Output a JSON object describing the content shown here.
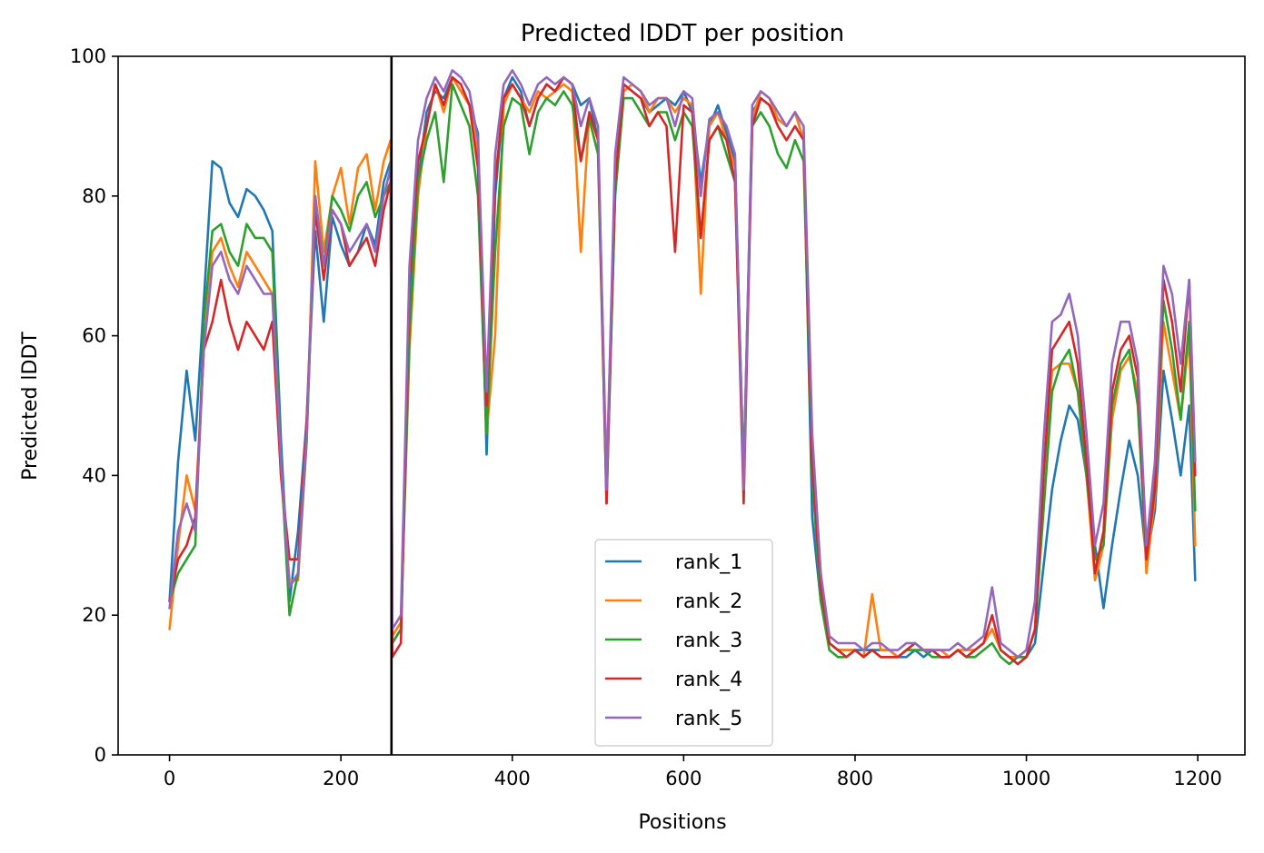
{
  "chart_data": {
    "type": "line",
    "title": "Predicted lDDT per position",
    "xlabel": "Positions",
    "ylabel": "Predicted lDDT",
    "xlim": [
      -60,
      1255
    ],
    "ylim": [
      0,
      100
    ],
    "xticks": [
      "0",
      "200",
      "400",
      "600",
      "800",
      "1000",
      "1200"
    ],
    "yticks": [
      "0",
      "20",
      "40",
      "60",
      "80",
      "100"
    ],
    "grid": false,
    "legend_position": "lower center",
    "vline": {
      "x": 259,
      "color": "#000000"
    },
    "x": [
      0,
      10,
      20,
      30,
      40,
      50,
      60,
      70,
      80,
      90,
      100,
      110,
      120,
      130,
      140,
      150,
      160,
      170,
      180,
      190,
      200,
      210,
      220,
      230,
      240,
      250,
      258,
      260,
      270,
      280,
      290,
      300,
      310,
      320,
      330,
      340,
      350,
      360,
      370,
      380,
      390,
      400,
      410,
      420,
      430,
      440,
      450,
      460,
      470,
      480,
      490,
      500,
      510,
      520,
      530,
      540,
      550,
      560,
      570,
      580,
      590,
      600,
      610,
      620,
      630,
      640,
      650,
      660,
      670,
      680,
      690,
      700,
      710,
      720,
      730,
      740,
      750,
      760,
      770,
      780,
      790,
      800,
      810,
      820,
      830,
      840,
      850,
      860,
      870,
      880,
      890,
      900,
      910,
      920,
      930,
      940,
      950,
      960,
      970,
      980,
      990,
      1000,
      1010,
      1020,
      1030,
      1040,
      1050,
      1060,
      1070,
      1080,
      1090,
      1100,
      1110,
      1120,
      1130,
      1140,
      1150,
      1160,
      1170,
      1180,
      1190,
      1197
    ],
    "series": [
      {
        "name": "rank_1",
        "color": "#1f77b4",
        "values": [
          22,
          42,
          55,
          45,
          65,
          85,
          84,
          79,
          77,
          81,
          80,
          78,
          75,
          45,
          22,
          32,
          48,
          75,
          62,
          77,
          73,
          70,
          72,
          76,
          73,
          82,
          85,
          16,
          18,
          65,
          82,
          92,
          95,
          94,
          97,
          95,
          93,
          89,
          43,
          80,
          94,
          97,
          95,
          90,
          94,
          96,
          95,
          97,
          96,
          93,
          94,
          88,
          37,
          80,
          96,
          95,
          94,
          92,
          93,
          94,
          93,
          95,
          92,
          82,
          90,
          93,
          89,
          85,
          40,
          92,
          94,
          93,
          91,
          90,
          92,
          88,
          34,
          22,
          16,
          15,
          15,
          15,
          15,
          15,
          15,
          15,
          14,
          14,
          15,
          14,
          15,
          14,
          14,
          15,
          14,
          15,
          16,
          18,
          15,
          14,
          13,
          14,
          16,
          27,
          38,
          45,
          50,
          48,
          40,
          30,
          21,
          30,
          38,
          45,
          40,
          28,
          35,
          55,
          48,
          40,
          50,
          25
        ]
      },
      {
        "name": "rank_2",
        "color": "#ff7f0e",
        "values": [
          18,
          30,
          40,
          35,
          58,
          72,
          74,
          70,
          67,
          72,
          70,
          68,
          66,
          40,
          25,
          25,
          45,
          85,
          72,
          80,
          84,
          76,
          84,
          86,
          78,
          85,
          88,
          17,
          19,
          58,
          80,
          90,
          96,
          92,
          97,
          95,
          93,
          86,
          46,
          60,
          93,
          96,
          94,
          92,
          95,
          94,
          95,
          96,
          95,
          72,
          92,
          88,
          40,
          82,
          95,
          96,
          95,
          92,
          94,
          94,
          92,
          94,
          93,
          66,
          90,
          92,
          88,
          84,
          40,
          91,
          95,
          94,
          91,
          90,
          92,
          88,
          44,
          26,
          16,
          15,
          15,
          15,
          14,
          23,
          15,
          15,
          14,
          15,
          16,
          15,
          15,
          15,
          14,
          15,
          15,
          15,
          16,
          18,
          15,
          14,
          14,
          14,
          18,
          40,
          55,
          56,
          56,
          52,
          40,
          25,
          30,
          48,
          55,
          57,
          52,
          26,
          37,
          62,
          55,
          48,
          60,
          30
        ]
      },
      {
        "name": "rank_3",
        "color": "#2ca02c",
        "values": [
          22,
          26,
          28,
          30,
          62,
          75,
          76,
          72,
          70,
          76,
          74,
          74,
          72,
          42,
          20,
          26,
          45,
          80,
          70,
          80,
          78,
          75,
          80,
          82,
          77,
          80,
          82,
          16,
          18,
          60,
          82,
          88,
          92,
          82,
          96,
          93,
          90,
          80,
          46,
          72,
          90,
          94,
          93,
          86,
          92,
          94,
          93,
          95,
          93,
          85,
          91,
          86,
          36,
          80,
          94,
          94,
          92,
          90,
          92,
          92,
          88,
          92,
          90,
          74,
          88,
          90,
          86,
          82,
          40,
          90,
          92,
          90,
          86,
          84,
          88,
          85,
          40,
          22,
          15,
          14,
          14,
          15,
          14,
          15,
          14,
          14,
          14,
          15,
          15,
          15,
          14,
          14,
          14,
          15,
          14,
          14,
          15,
          16,
          14,
          13,
          14,
          14,
          18,
          35,
          52,
          56,
          58,
          52,
          40,
          28,
          30,
          50,
          56,
          58,
          50,
          28,
          40,
          65,
          58,
          48,
          62,
          35
        ]
      },
      {
        "name": "rank_4",
        "color": "#d62728",
        "values": [
          22,
          28,
          30,
          34,
          58,
          62,
          68,
          62,
          58,
          62,
          60,
          58,
          62,
          40,
          28,
          28,
          48,
          78,
          68,
          78,
          76,
          70,
          72,
          74,
          70,
          78,
          82,
          14,
          16,
          68,
          85,
          90,
          96,
          93,
          97,
          96,
          93,
          84,
          50,
          82,
          94,
          96,
          94,
          90,
          94,
          96,
          95,
          97,
          96,
          85,
          92,
          88,
          36,
          82,
          96,
          95,
          94,
          90,
          92,
          90,
          72,
          93,
          92,
          74,
          88,
          90,
          88,
          82,
          36,
          90,
          94,
          93,
          90,
          88,
          90,
          88,
          42,
          24,
          16,
          15,
          14,
          15,
          14,
          15,
          14,
          14,
          14,
          15,
          16,
          15,
          15,
          14,
          14,
          15,
          14,
          15,
          16,
          20,
          15,
          14,
          13,
          14,
          18,
          40,
          58,
          60,
          62,
          56,
          42,
          26,
          32,
          52,
          58,
          60,
          54,
          28,
          38,
          68,
          62,
          52,
          68,
          40
        ]
      },
      {
        "name": "rank_5",
        "color": "#9467bd",
        "values": [
          21,
          32,
          36,
          32,
          58,
          70,
          72,
          68,
          66,
          70,
          68,
          66,
          66,
          42,
          24,
          26,
          46,
          80,
          70,
          78,
          76,
          72,
          74,
          76,
          72,
          80,
          84,
          18,
          20,
          70,
          88,
          94,
          97,
          95,
          98,
          97,
          95,
          88,
          52,
          86,
          96,
          98,
          96,
          93,
          96,
          97,
          96,
          97,
          96,
          90,
          94,
          90,
          38,
          86,
          97,
          96,
          95,
          93,
          94,
          94,
          90,
          95,
          94,
          80,
          91,
          92,
          90,
          86,
          38,
          93,
          95,
          94,
          92,
          90,
          92,
          90,
          46,
          26,
          17,
          16,
          16,
          16,
          15,
          16,
          16,
          15,
          15,
          16,
          16,
          15,
          15,
          15,
          15,
          16,
          15,
          16,
          17,
          24,
          16,
          15,
          14,
          15,
          22,
          45,
          62,
          63,
          66,
          60,
          46,
          30,
          36,
          56,
          62,
          62,
          56,
          30,
          42,
          70,
          66,
          56,
          68,
          42
        ]
      }
    ]
  }
}
